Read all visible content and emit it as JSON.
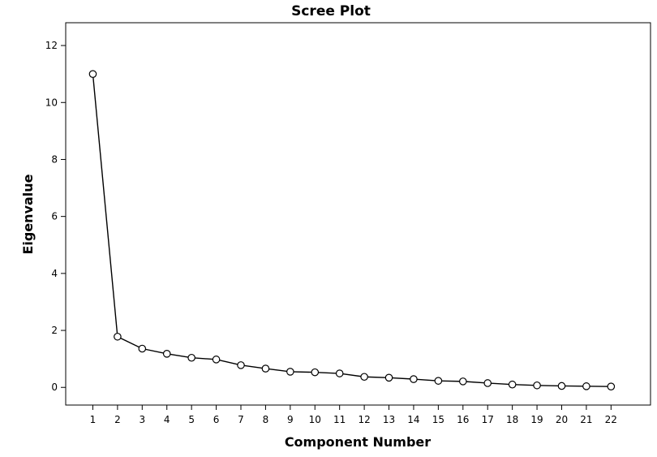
{
  "chart_data": {
    "type": "line",
    "title": "Scree Plot",
    "xlabel": "Component Number",
    "ylabel": "Eigenvalue",
    "x": [
      1,
      2,
      3,
      4,
      5,
      6,
      7,
      8,
      9,
      10,
      11,
      12,
      13,
      14,
      15,
      16,
      17,
      18,
      19,
      20,
      21,
      22
    ],
    "series": [
      {
        "values": [
          11.0,
          1.78,
          1.36,
          1.18,
          1.04,
          0.98,
          0.78,
          0.66,
          0.55,
          0.53,
          0.49,
          0.37,
          0.34,
          0.29,
          0.23,
          0.21,
          0.15,
          0.1,
          0.07,
          0.05,
          0.04,
          0.03
        ],
        "marker": "open-circle",
        "color": "#000000"
      }
    ],
    "xlim": [
      -0.1,
      23.6
    ],
    "ylim": [
      -0.62,
      12.8
    ],
    "xticks": [
      1,
      2,
      3,
      4,
      5,
      6,
      7,
      8,
      9,
      10,
      11,
      12,
      13,
      14,
      15,
      16,
      17,
      18,
      19,
      20,
      21,
      22
    ],
    "yticks": [
      0,
      2,
      4,
      6,
      8,
      10,
      12
    ],
    "grid": false,
    "legend": "none"
  }
}
